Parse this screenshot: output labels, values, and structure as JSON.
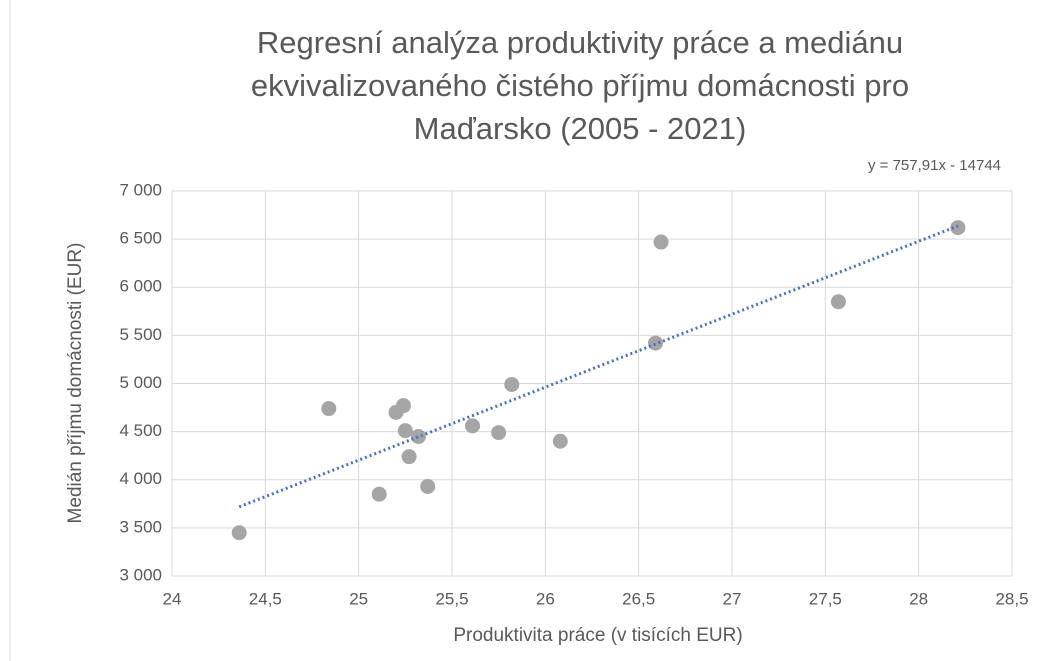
{
  "chart_data": {
    "type": "scatter",
    "title": [
      "Regresní analýza produktivity práce a mediánu",
      "ekvivalizovaného čistého příjmu domácnosti pro",
      "Maďarsko (2005 - 2021)"
    ],
    "x_label": "Produktivita práce (v tisících EUR)",
    "y_label": "Medián příjmu domácnosti (EUR)",
    "x": [
      24.36,
      24.84,
      25.11,
      25.2,
      25.24,
      25.25,
      25.27,
      25.32,
      25.37,
      25.61,
      25.75,
      25.82,
      26.08,
      26.59,
      26.62,
      27.57,
      28.21
    ],
    "values": [
      3450,
      4740,
      3850,
      4700,
      4770,
      4510,
      4240,
      4450,
      3930,
      4560,
      4490,
      4990,
      4400,
      5420,
      6470,
      5850,
      6620
    ],
    "color": "#a5a5a5",
    "trendline": {
      "slope": 757.91,
      "intercept": -14744,
      "label": "y = 757,91x - 14744",
      "color": "#4472c4"
    },
    "xlim": [
      24,
      28.5
    ],
    "xticks": [
      24,
      {
        "value": 24.5,
        "label": "24,5"
      },
      25,
      {
        "value": 25.5,
        "label": "25,5"
      },
      26,
      {
        "value": 26.5,
        "label": "26,5"
      },
      27,
      {
        "value": 27.5,
        "label": "27,5"
      },
      28,
      {
        "value": 28.5,
        "label": "28,5"
      }
    ],
    "ylim": [
      3000,
      7000
    ],
    "yticks": [
      {
        "value": 3000,
        "label": "3 000"
      },
      {
        "value": 3500,
        "label": "3 500"
      },
      {
        "value": 4000,
        "label": "4 000"
      },
      {
        "value": 4500,
        "label": "4 500"
      },
      {
        "value": 5000,
        "label": "5 000"
      },
      {
        "value": 5500,
        "label": "5 500"
      },
      {
        "value": 6000,
        "label": "6 000"
      },
      {
        "value": 6500,
        "label": "6 500"
      },
      {
        "value": 7000,
        "label": "7 000"
      }
    ],
    "grid": true
  }
}
